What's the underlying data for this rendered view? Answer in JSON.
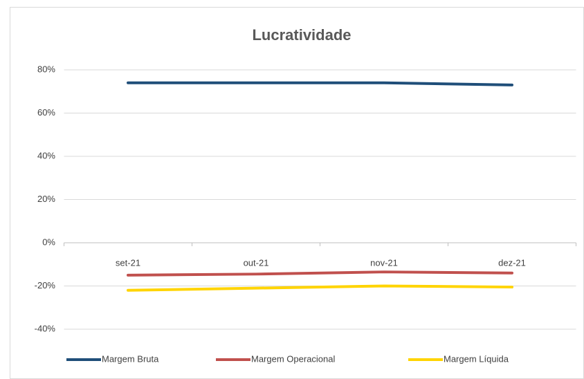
{
  "chart_data": {
    "type": "line",
    "title": "Lucratividade",
    "categories": [
      "set-21",
      "out-21",
      "nov-21",
      "dez-21"
    ],
    "series": [
      {
        "name": "Margem Bruta",
        "color": "#1f4e79",
        "values": [
          74,
          74,
          74,
          73
        ]
      },
      {
        "name": "Margem Operacional",
        "color": "#c0504d",
        "values": [
          -15,
          -14.5,
          -13.5,
          -14
        ]
      },
      {
        "name": "Margem Líquida",
        "color": "#ffd400",
        "values": [
          -22,
          -21,
          -20,
          -20.5
        ]
      }
    ],
    "ylim": [
      -40,
      80
    ],
    "yticks": [
      {
        "value": -40,
        "label": "-40%"
      },
      {
        "value": -20,
        "label": "-20%"
      },
      {
        "value": 0,
        "label": "0%"
      },
      {
        "value": 20,
        "label": "20%"
      },
      {
        "value": 40,
        "label": "40%"
      },
      {
        "value": 60,
        "label": "60%"
      },
      {
        "value": 80,
        "label": "80%"
      }
    ],
    "grid": true,
    "legend": "bottom"
  }
}
